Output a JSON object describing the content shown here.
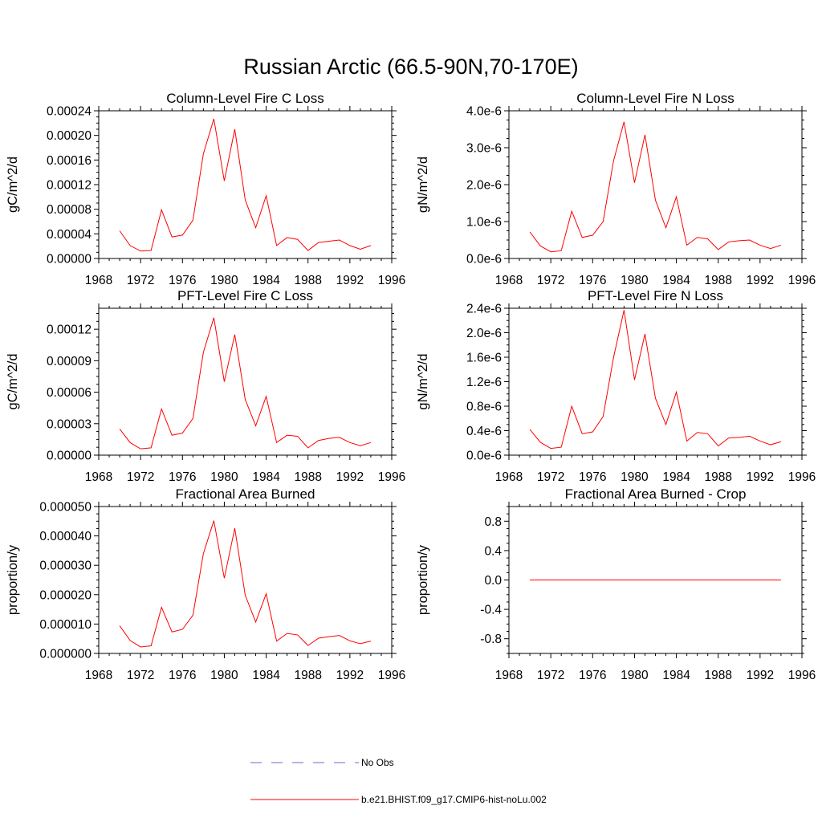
{
  "figure": {
    "title": "Russian Arctic (66.5-90N,70-170E)"
  },
  "legend": {
    "entries": [
      {
        "label": "No Obs",
        "color": "#6a6ad8",
        "style": "dashed"
      },
      {
        "label": "b.e21.BHIST.f09_g17.CMIP6-hist-noLu.002",
        "color": "#ff0000",
        "style": "solid"
      }
    ]
  },
  "chart_data": [
    {
      "type": "line",
      "title": "Column-Level Fire C Loss",
      "ylabel": "gC/m^2/d",
      "xlim": [
        1968,
        1996
      ],
      "ylim": [
        0,
        0.00024
      ],
      "xticks": [
        "1968",
        "1972",
        "1976",
        "1980",
        "1984",
        "1988",
        "1992",
        "1996"
      ],
      "yticks": [
        {
          "value": 0,
          "label": "0.00000"
        },
        {
          "value": 4e-05,
          "label": "0.00004"
        },
        {
          "value": 8e-05,
          "label": "0.00008"
        },
        {
          "value": 0.00012,
          "label": "0.00012"
        },
        {
          "value": 0.00016,
          "label": "0.00016"
        },
        {
          "value": 0.0002,
          "label": "0.00020"
        },
        {
          "value": 0.00024,
          "label": "0.00024"
        }
      ],
      "x": [
        1970,
        1971,
        1972,
        1973,
        1974,
        1975,
        1976,
        1977,
        1978,
        1979,
        1980,
        1981,
        1982,
        1983,
        1984,
        1985,
        1986,
        1987,
        1988,
        1989,
        1990,
        1991,
        1992,
        1993,
        1994
      ],
      "series": [
        {
          "name": "b.e21.BHIST.f09_g17.CMIP6-hist-noLu.002",
          "color": "#ff0000",
          "values": [
            4.5e-05,
            2.1e-05,
            1.2e-05,
            1.3e-05,
            7.9e-05,
            3.5e-05,
            3.8e-05,
            6.2e-05,
            0.00017,
            0.000227,
            0.000126,
            0.00021,
            9.5e-05,
            5e-05,
            0.000102,
            2.1e-05,
            3.4e-05,
            3.1e-05,
            1.3e-05,
            2.6e-05,
            2.8e-05,
            3e-05,
            2.1e-05,
            1.5e-05,
            2.1e-05
          ]
        }
      ]
    },
    {
      "type": "line",
      "title": "Column-Level Fire N Loss",
      "ylabel": "gN/m^2/d",
      "xlim": [
        1968,
        1996
      ],
      "ylim": [
        0,
        4e-06
      ],
      "xticks": [
        "1968",
        "1972",
        "1976",
        "1980",
        "1984",
        "1988",
        "1992",
        "1996"
      ],
      "yticks": [
        {
          "value": 0,
          "label": "0.0e-6"
        },
        {
          "value": 1e-06,
          "label": "1.0e-6"
        },
        {
          "value": 2e-06,
          "label": "2.0e-6"
        },
        {
          "value": 3e-06,
          "label": "3.0e-6"
        },
        {
          "value": 4e-06,
          "label": "4.0e-6"
        }
      ],
      "x": [
        1970,
        1971,
        1972,
        1973,
        1974,
        1975,
        1976,
        1977,
        1978,
        1979,
        1980,
        1981,
        1982,
        1983,
        1984,
        1985,
        1986,
        1987,
        1988,
        1989,
        1990,
        1991,
        1992,
        1993,
        1994
      ],
      "series": [
        {
          "name": "b.e21.BHIST.f09_g17.CMIP6-hist-noLu.002",
          "color": "#ff0000",
          "values": [
            7.2e-07,
            3.4e-07,
            1.8e-07,
            2.1e-07,
            1.28e-06,
            5.7e-07,
            6.3e-07,
            1e-06,
            2.65e-06,
            3.7e-06,
            2.05e-06,
            3.35e-06,
            1.58e-06,
            8.3e-07,
            1.67e-06,
            3.6e-07,
            5.7e-07,
            5.3e-07,
            2.4e-07,
            4.5e-07,
            4.8e-07,
            5e-07,
            3.6e-07,
            2.7e-07,
            3.6e-07
          ]
        }
      ]
    },
    {
      "type": "line",
      "title": "PFT-Level Fire C Loss",
      "ylabel": "gC/m^2/d",
      "xlim": [
        1968,
        1996
      ],
      "ylim": [
        0,
        0.00014
      ],
      "xticks": [
        "1968",
        "1972",
        "1976",
        "1980",
        "1984",
        "1988",
        "1992",
        "1996"
      ],
      "yticks": [
        {
          "value": 0,
          "label": "0.00000"
        },
        {
          "value": 3e-05,
          "label": "0.00003"
        },
        {
          "value": 6e-05,
          "label": "0.00006"
        },
        {
          "value": 9e-05,
          "label": "0.00009"
        },
        {
          "value": 0.00012,
          "label": "0.00012"
        }
      ],
      "x": [
        1970,
        1971,
        1972,
        1973,
        1974,
        1975,
        1976,
        1977,
        1978,
        1979,
        1980,
        1981,
        1982,
        1983,
        1984,
        1985,
        1986,
        1987,
        1988,
        1989,
        1990,
        1991,
        1992,
        1993,
        1994
      ],
      "series": [
        {
          "name": "b.e21.BHIST.f09_g17.CMIP6-hist-noLu.002",
          "color": "#ff0000",
          "values": [
            2.5e-05,
            1.2e-05,
            6e-06,
            7e-06,
            4.4e-05,
            1.9e-05,
            2.1e-05,
            3.5e-05,
            9.8e-05,
            0.000131,
            7e-05,
            0.000115,
            5.3e-05,
            2.8e-05,
            5.6e-05,
            1.2e-05,
            1.9e-05,
            1.8e-05,
            7e-06,
            1.4e-05,
            1.6e-05,
            1.7e-05,
            1.2e-05,
            9e-06,
            1.2e-05
          ]
        }
      ]
    },
    {
      "type": "line",
      "title": "PFT-Level Fire N Loss",
      "ylabel": "gN/m^2/d",
      "xlim": [
        1968,
        1996
      ],
      "ylim": [
        0,
        2.4e-06
      ],
      "xticks": [
        "1968",
        "1972",
        "1976",
        "1980",
        "1984",
        "1988",
        "1992",
        "1996"
      ],
      "yticks": [
        {
          "value": 0,
          "label": "0.0e-6"
        },
        {
          "value": 4e-07,
          "label": "0.4e-6"
        },
        {
          "value": 8e-07,
          "label": "0.8e-6"
        },
        {
          "value": 1.2e-06,
          "label": "1.2e-6"
        },
        {
          "value": 1.6e-06,
          "label": "1.6e-6"
        },
        {
          "value": 2e-06,
          "label": "2.0e-6"
        },
        {
          "value": 2.4e-06,
          "label": "2.4e-6"
        }
      ],
      "x": [
        1970,
        1971,
        1972,
        1973,
        1974,
        1975,
        1976,
        1977,
        1978,
        1979,
        1980,
        1981,
        1982,
        1983,
        1984,
        1985,
        1986,
        1987,
        1988,
        1989,
        1990,
        1991,
        1992,
        1993,
        1994
      ],
      "series": [
        {
          "name": "b.e21.BHIST.f09_g17.CMIP6-hist-noLu.002",
          "color": "#ff0000",
          "values": [
            4.2e-07,
            2.1e-07,
            1.1e-07,
            1.3e-07,
            8e-07,
            3.5e-07,
            3.8e-07,
            6.3e-07,
            1.6e-06,
            2.37e-06,
            1.23e-06,
            1.98e-06,
            9.3e-07,
            5e-07,
            1.03e-06,
            2.3e-07,
            3.7e-07,
            3.5e-07,
            1.5e-07,
            2.8e-07,
            2.9e-07,
            3.1e-07,
            2.3e-07,
            1.7e-07,
            2.2e-07
          ]
        }
      ]
    },
    {
      "type": "line",
      "title": "Fractional Area Burned",
      "ylabel": "proportion/y",
      "xlim": [
        1968,
        1996
      ],
      "ylim": [
        0,
        5e-05
      ],
      "xticks": [
        "1968",
        "1972",
        "1976",
        "1980",
        "1984",
        "1988",
        "1992",
        "1996"
      ],
      "yticks": [
        {
          "value": 0,
          "label": "0.000000"
        },
        {
          "value": 1e-05,
          "label": "0.000010"
        },
        {
          "value": 2e-05,
          "label": "0.000020"
        },
        {
          "value": 3e-05,
          "label": "0.000030"
        },
        {
          "value": 4e-05,
          "label": "0.000040"
        },
        {
          "value": 5e-05,
          "label": "0.000050"
        }
      ],
      "x": [
        1970,
        1971,
        1972,
        1973,
        1974,
        1975,
        1976,
        1977,
        1978,
        1979,
        1980,
        1981,
        1982,
        1983,
        1984,
        1985,
        1986,
        1987,
        1988,
        1989,
        1990,
        1991,
        1992,
        1993,
        1994
      ],
      "series": [
        {
          "name": "b.e21.BHIST.f09_g17.CMIP6-hist-noLu.002",
          "color": "#ff0000",
          "values": [
            9.4e-06,
            4.4e-06,
            2.2e-06,
            2.6e-06,
            1.57e-05,
            7.3e-06,
            8.2e-06,
            1.3e-05,
            3.4e-05,
            4.52e-05,
            2.56e-05,
            4.26e-05,
            1.98e-05,
            1.07e-05,
            2.03e-05,
            4.2e-06,
            6.8e-06,
            6.3e-06,
            2.7e-06,
            5.2e-06,
            5.7e-06,
            6.1e-06,
            4.3e-06,
            3.3e-06,
            4.2e-06
          ]
        }
      ]
    },
    {
      "type": "line",
      "title": "Fractional Area Burned - Crop",
      "ylabel": "proportion/y",
      "xlim": [
        1968,
        1996
      ],
      "ylim": [
        -1,
        1
      ],
      "xticks": [
        "1968",
        "1972",
        "1976",
        "1980",
        "1984",
        "1988",
        "1992",
        "1996"
      ],
      "yticks": [
        {
          "value": -0.8,
          "label": "-0.8"
        },
        {
          "value": -0.4,
          "label": "-0.4"
        },
        {
          "value": 0,
          "label": "0.0"
        },
        {
          "value": 0.4,
          "label": "0.4"
        },
        {
          "value": 0.8,
          "label": "0.8"
        }
      ],
      "x": [
        1970,
        1971,
        1972,
        1973,
        1974,
        1975,
        1976,
        1977,
        1978,
        1979,
        1980,
        1981,
        1982,
        1983,
        1984,
        1985,
        1986,
        1987,
        1988,
        1989,
        1990,
        1991,
        1992,
        1993,
        1994
      ],
      "series": [
        {
          "name": "b.e21.BHIST.f09_g17.CMIP6-hist-noLu.002",
          "color": "#ff0000",
          "values": [
            0,
            0,
            0,
            0,
            0,
            0,
            0,
            0,
            0,
            0,
            0,
            0,
            0,
            0,
            0,
            0,
            0,
            0,
            0,
            0,
            0,
            0,
            0,
            0,
            0
          ]
        }
      ]
    }
  ]
}
